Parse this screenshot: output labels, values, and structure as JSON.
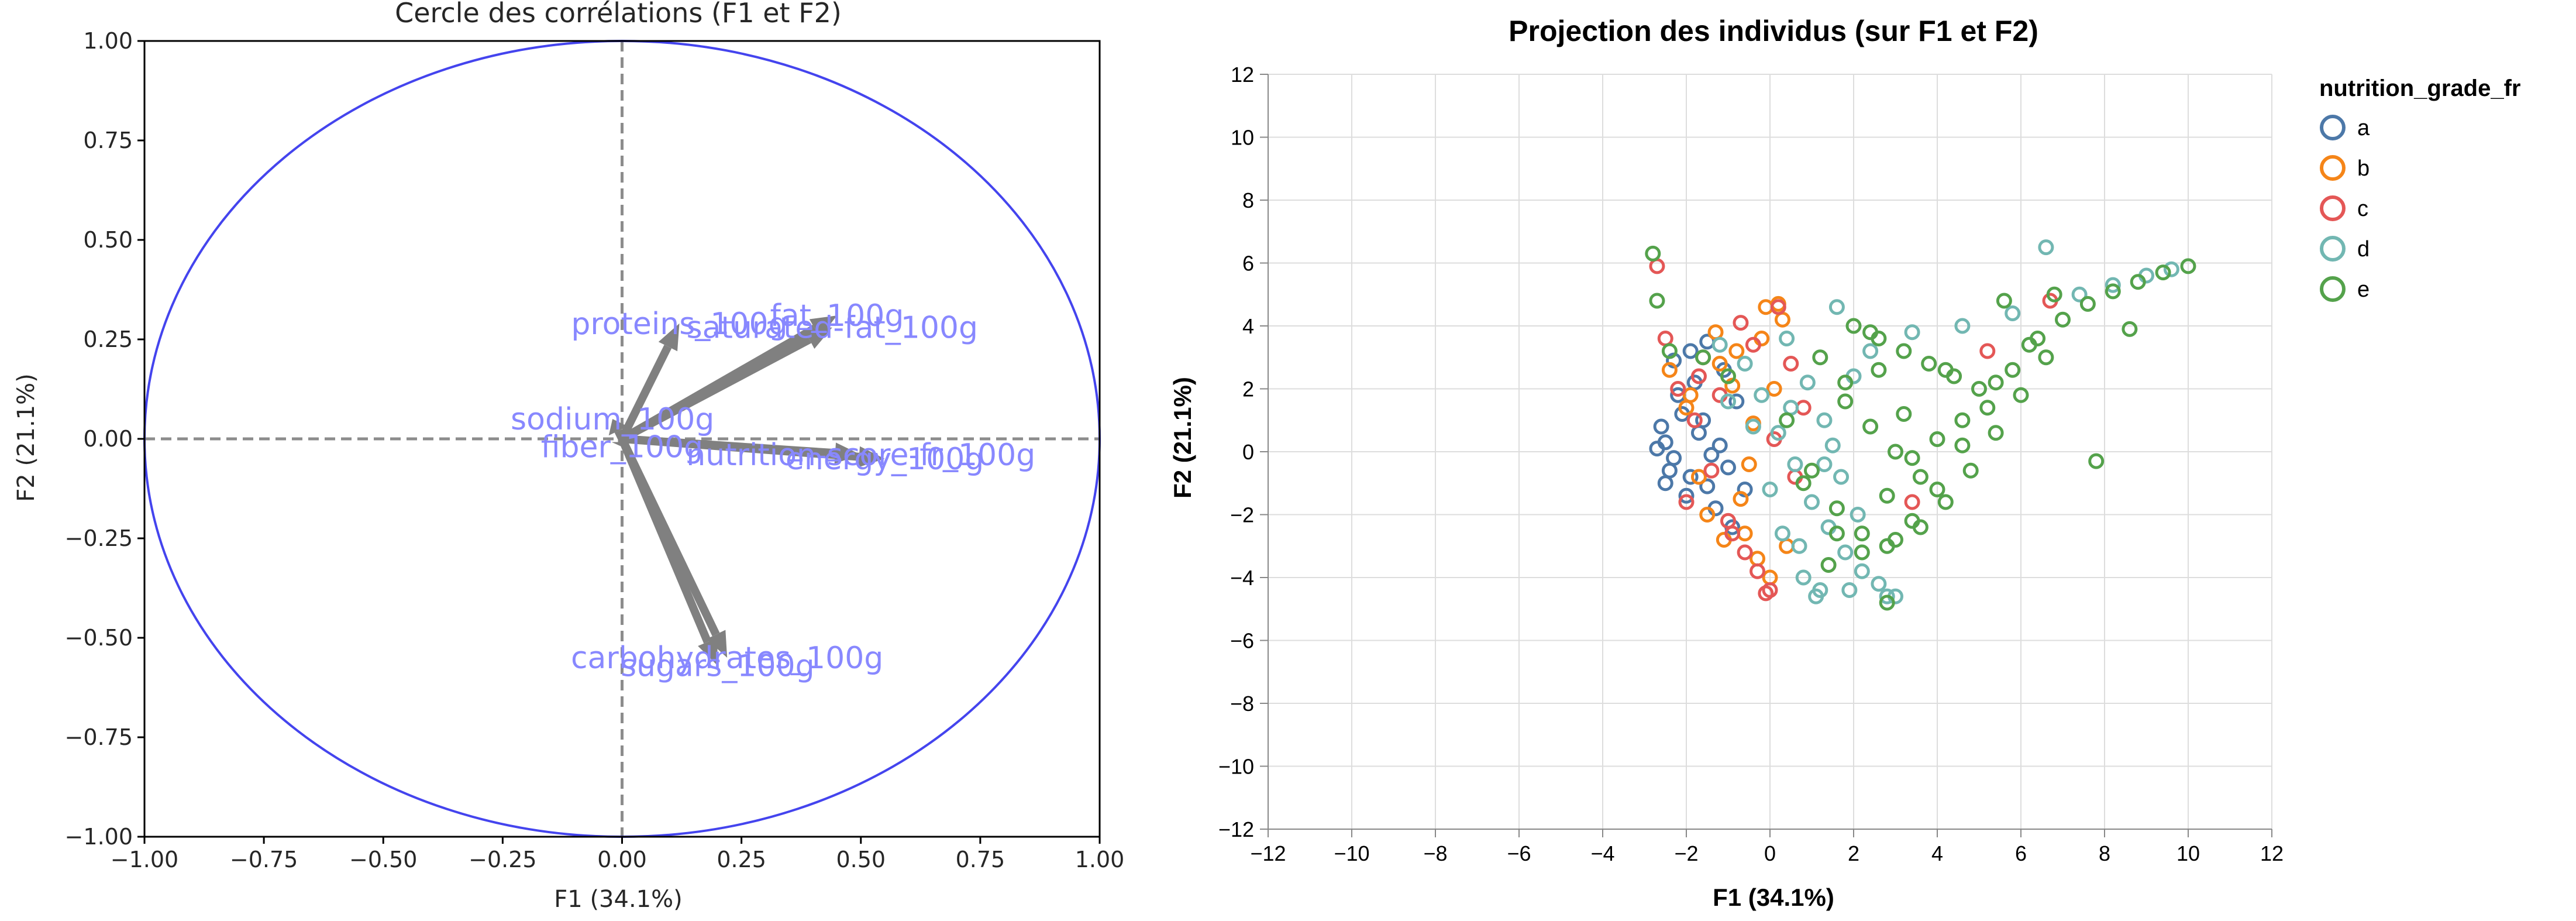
{
  "chart_data": [
    {
      "type": "line",
      "title": "Cercle des corrélations (F1 et F2)",
      "xlabel": "F1 (34.1%)",
      "ylabel": "F2 (21.1%)",
      "xlim": [
        -1,
        1
      ],
      "ylim": [
        -1,
        1
      ],
      "xticks": [
        "−1.00",
        "−0.75",
        "−0.50",
        "−0.25",
        "0.00",
        "0.25",
        "0.50",
        "0.75",
        "1.00"
      ],
      "yticks": [
        "−1.00",
        "−0.75",
        "−0.50",
        "−0.25",
        "0.00",
        "0.25",
        "0.50",
        "0.75",
        "1.00"
      ],
      "grid": false,
      "unit_circle": true,
      "vectors": [
        {
          "label": "proteins_100g",
          "x": 0.12,
          "y": 0.29
        },
        {
          "label": "fat_100g",
          "x": 0.45,
          "y": 0.31
        },
        {
          "label": "saturated-fat_100g",
          "x": 0.44,
          "y": 0.28
        },
        {
          "label": "sodium_100g",
          "x": -0.02,
          "y": 0.05
        },
        {
          "label": "nutrition-score-fr_100g",
          "x": 0.5,
          "y": -0.04
        },
        {
          "label": "energy_100g",
          "x": 0.55,
          "y": -0.05
        },
        {
          "label": "fiber_100g",
          "x": 0.0,
          "y": -0.02
        },
        {
          "label": "carbohydrates_100g",
          "x": 0.22,
          "y": -0.55
        },
        {
          "label": "sugars_100g",
          "x": 0.2,
          "y": -0.57
        }
      ],
      "colors": {
        "circle": "#4444ee",
        "arrow": "#808080",
        "label": "#8888ff"
      }
    },
    {
      "type": "scatter",
      "title": "Projection des individus (sur F1 et F2)",
      "xlabel": "F1 (34.1%)",
      "ylabel": "F2 (21.1%)",
      "xlim": [
        -12,
        12
      ],
      "ylim": [
        -12,
        12
      ],
      "xticks": [
        "−12",
        "−10",
        "−8",
        "−6",
        "−4",
        "−2",
        "0",
        "2",
        "4",
        "6",
        "8",
        "10",
        "12"
      ],
      "yticks": [
        "−12",
        "−10",
        "−8",
        "−6",
        "−4",
        "−2",
        "0",
        "2",
        "4",
        "6",
        "8",
        "10",
        "12"
      ],
      "grid": true,
      "legend": {
        "title": "nutrition_grade_fr",
        "position": "top-right"
      },
      "series": [
        {
          "name": "a",
          "color": "#4c78a8",
          "x": [
            -2.6,
            -2.5,
            -2.3,
            -2.1,
            -1.9,
            -1.7,
            -1.5,
            -1.2,
            -1.0,
            -0.8,
            -2.4,
            -2.0,
            -1.6,
            -1.3,
            -2.2,
            -1.8,
            -1.4,
            -0.9,
            -2.7,
            -2.5,
            -1.1,
            -0.6,
            -2.3,
            -1.9,
            -1.5
          ],
          "y": [
            0.8,
            0.3,
            -0.2,
            1.2,
            -0.8,
            0.6,
            -1.1,
            0.2,
            -0.5,
            1.6,
            -0.6,
            -1.4,
            1.0,
            -1.8,
            1.8,
            2.2,
            -0.1,
            -2.4,
            0.1,
            -1.0,
            2.6,
            -1.2,
            2.9,
            3.2,
            3.5
          ]
        },
        {
          "name": "b",
          "color": "#f58518",
          "x": [
            -2.4,
            -2.0,
            -1.7,
            -1.3,
            -0.9,
            -0.6,
            -0.4,
            -0.1,
            0.2,
            -1.5,
            -1.1,
            -0.8,
            -0.3,
            0.1,
            -0.5,
            -1.9,
            0.3,
            -0.7,
            -1.2,
            0.4,
            -0.2,
            0.0
          ],
          "y": [
            2.6,
            1.4,
            -0.8,
            3.8,
            2.1,
            -2.6,
            0.9,
            4.6,
            4.7,
            -2.0,
            -2.8,
            3.2,
            -3.4,
            2.0,
            -0.4,
            1.8,
            4.2,
            -1.5,
            2.8,
            -3.0,
            3.6,
            -4.0
          ]
        },
        {
          "name": "c",
          "color": "#e45756",
          "x": [
            -2.7,
            -2.5,
            -2.2,
            -1.8,
            -1.4,
            -1.0,
            -0.6,
            -0.3,
            0.0,
            0.2,
            0.5,
            0.8,
            -2.0,
            -1.6,
            -1.2,
            -0.9,
            -0.4,
            0.1,
            0.6,
            6.7,
            5.2,
            3.4,
            -0.1,
            -1.7,
            -0.7
          ],
          "y": [
            5.9,
            3.6,
            2.0,
            1.0,
            -0.6,
            -2.2,
            -3.2,
            -3.8,
            -4.4,
            4.6,
            2.8,
            1.4,
            -1.6,
            3.0,
            1.8,
            -2.6,
            3.4,
            0.4,
            -0.8,
            4.8,
            3.2,
            -1.6,
            -4.5,
            2.4,
            4.1
          ]
        },
        {
          "name": "d",
          "color": "#72b7b2",
          "x": [
            -1.2,
            -0.6,
            -0.2,
            0.2,
            0.6,
            1.0,
            1.4,
            1.8,
            2.2,
            2.6,
            3.0,
            0.4,
            0.9,
            1.3,
            1.7,
            2.1,
            1.2,
            0.8,
            0.3,
            1.6,
            2.4,
            6.6,
            7.4,
            8.2,
            9.0,
            9.6,
            1.5,
            0.0,
            -0.4,
            0.7,
            2.0,
            1.1,
            1.9,
            2.8,
            3.4,
            0.5,
            1.3,
            5.8,
            4.6,
            -1.0
          ],
          "y": [
            3.4,
            2.8,
            1.8,
            0.6,
            -0.4,
            -1.6,
            -2.4,
            -3.2,
            -3.8,
            -4.2,
            -4.6,
            3.6,
            2.2,
            1.0,
            -0.8,
            -2.0,
            -4.4,
            -4.0,
            -2.6,
            4.6,
            3.2,
            6.5,
            5.0,
            5.3,
            5.6,
            5.8,
            0.2,
            -1.2,
            0.8,
            -3.0,
            2.4,
            -4.6,
            -4.4,
            -4.6,
            3.8,
            1.4,
            -0.4,
            4.4,
            4.0,
            1.6
          ]
        },
        {
          "name": "e",
          "color": "#54a24b",
          "x": [
            -2.8,
            -2.7,
            -2.4,
            2.8,
            -1.6,
            -1.0,
            0.4,
            1.0,
            1.6,
            2.2,
            2.8,
            3.4,
            4.0,
            4.6,
            5.2,
            5.8,
            6.4,
            7.0,
            7.6,
            8.2,
            8.8,
            9.4,
            10.0,
            7.8,
            8.6,
            2.0,
            2.6,
            3.2,
            3.8,
            4.4,
            5.0,
            1.4,
            2.2,
            3.0,
            3.6,
            4.2,
            4.8,
            5.4,
            6.0,
            6.6,
            2.4,
            3.0,
            3.6,
            1.8,
            2.6,
            3.2,
            4.0,
            4.6,
            5.4,
            6.2,
            2.8,
            3.4,
            4.2,
            1.2,
            1.8,
            2.4,
            0.8,
            1.6,
            5.6,
            6.8
          ],
          "y": [
            6.3,
            4.8,
            3.2,
            -4.8,
            3.0,
            2.4,
            1.0,
            -0.6,
            -1.8,
            -2.6,
            -3.0,
            -2.2,
            -1.2,
            0.2,
            1.4,
            2.6,
            3.6,
            4.2,
            4.7,
            5.1,
            5.4,
            5.7,
            5.9,
            -0.3,
            3.9,
            4.0,
            3.6,
            3.2,
            2.8,
            2.4,
            2.0,
            -3.6,
            -3.2,
            -2.8,
            -2.4,
            -1.6,
            -0.6,
            0.6,
            1.8,
            3.0,
            0.8,
            0.0,
            -0.8,
            1.6,
            2.6,
            1.2,
            0.4,
            1.0,
            2.2,
            3.4,
            -1.4,
            -0.2,
            2.6,
            3.0,
            2.2,
            3.8,
            -1.0,
            -2.6,
            4.8,
            5.0
          ]
        }
      ]
    }
  ]
}
